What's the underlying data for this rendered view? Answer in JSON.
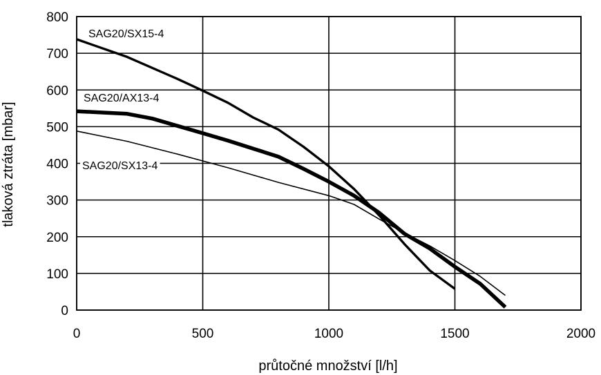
{
  "chart_data": {
    "type": "line",
    "title": "",
    "xlabel": "průtočné množství [l/h]",
    "ylabel": "tlaková ztráta [mbar]",
    "xlim": [
      0,
      2000
    ],
    "ylim": [
      0,
      800
    ],
    "xticks": [
      0,
      500,
      1000,
      1500,
      2000
    ],
    "yticks": [
      0,
      100,
      200,
      300,
      400,
      500,
      600,
      700,
      800
    ],
    "grid": true,
    "series": [
      {
        "name": "SAG20/SX15-4",
        "line_weight": "medium",
        "x": [
          0,
          200,
          400,
          500,
          600,
          700,
          800,
          900,
          1000,
          1100,
          1200,
          1300,
          1400,
          1500
        ],
        "y": [
          738,
          690,
          630,
          598,
          565,
          525,
          492,
          445,
          392,
          330,
          258,
          180,
          108,
          58
        ]
      },
      {
        "name": "SAG20/AX13-4",
        "line_weight": "heavy",
        "x": [
          0,
          200,
          300,
          400,
          500,
          600,
          700,
          800,
          900,
          1000,
          1100,
          1200,
          1300,
          1400,
          1500,
          1600,
          1700
        ],
        "y": [
          542,
          535,
          522,
          502,
          482,
          462,
          440,
          418,
          385,
          350,
          312,
          265,
          208,
          168,
          118,
          72,
          8
        ]
      },
      {
        "name": "SAG20/SX13-4",
        "line_weight": "thin",
        "x": [
          0,
          200,
          400,
          600,
          800,
          1000,
          1100,
          1200,
          1300,
          1400,
          1500,
          1600,
          1700
        ],
        "y": [
          488,
          460,
          425,
          388,
          348,
          312,
          288,
          248,
          210,
          175,
          135,
          92,
          40
        ]
      }
    ]
  }
}
